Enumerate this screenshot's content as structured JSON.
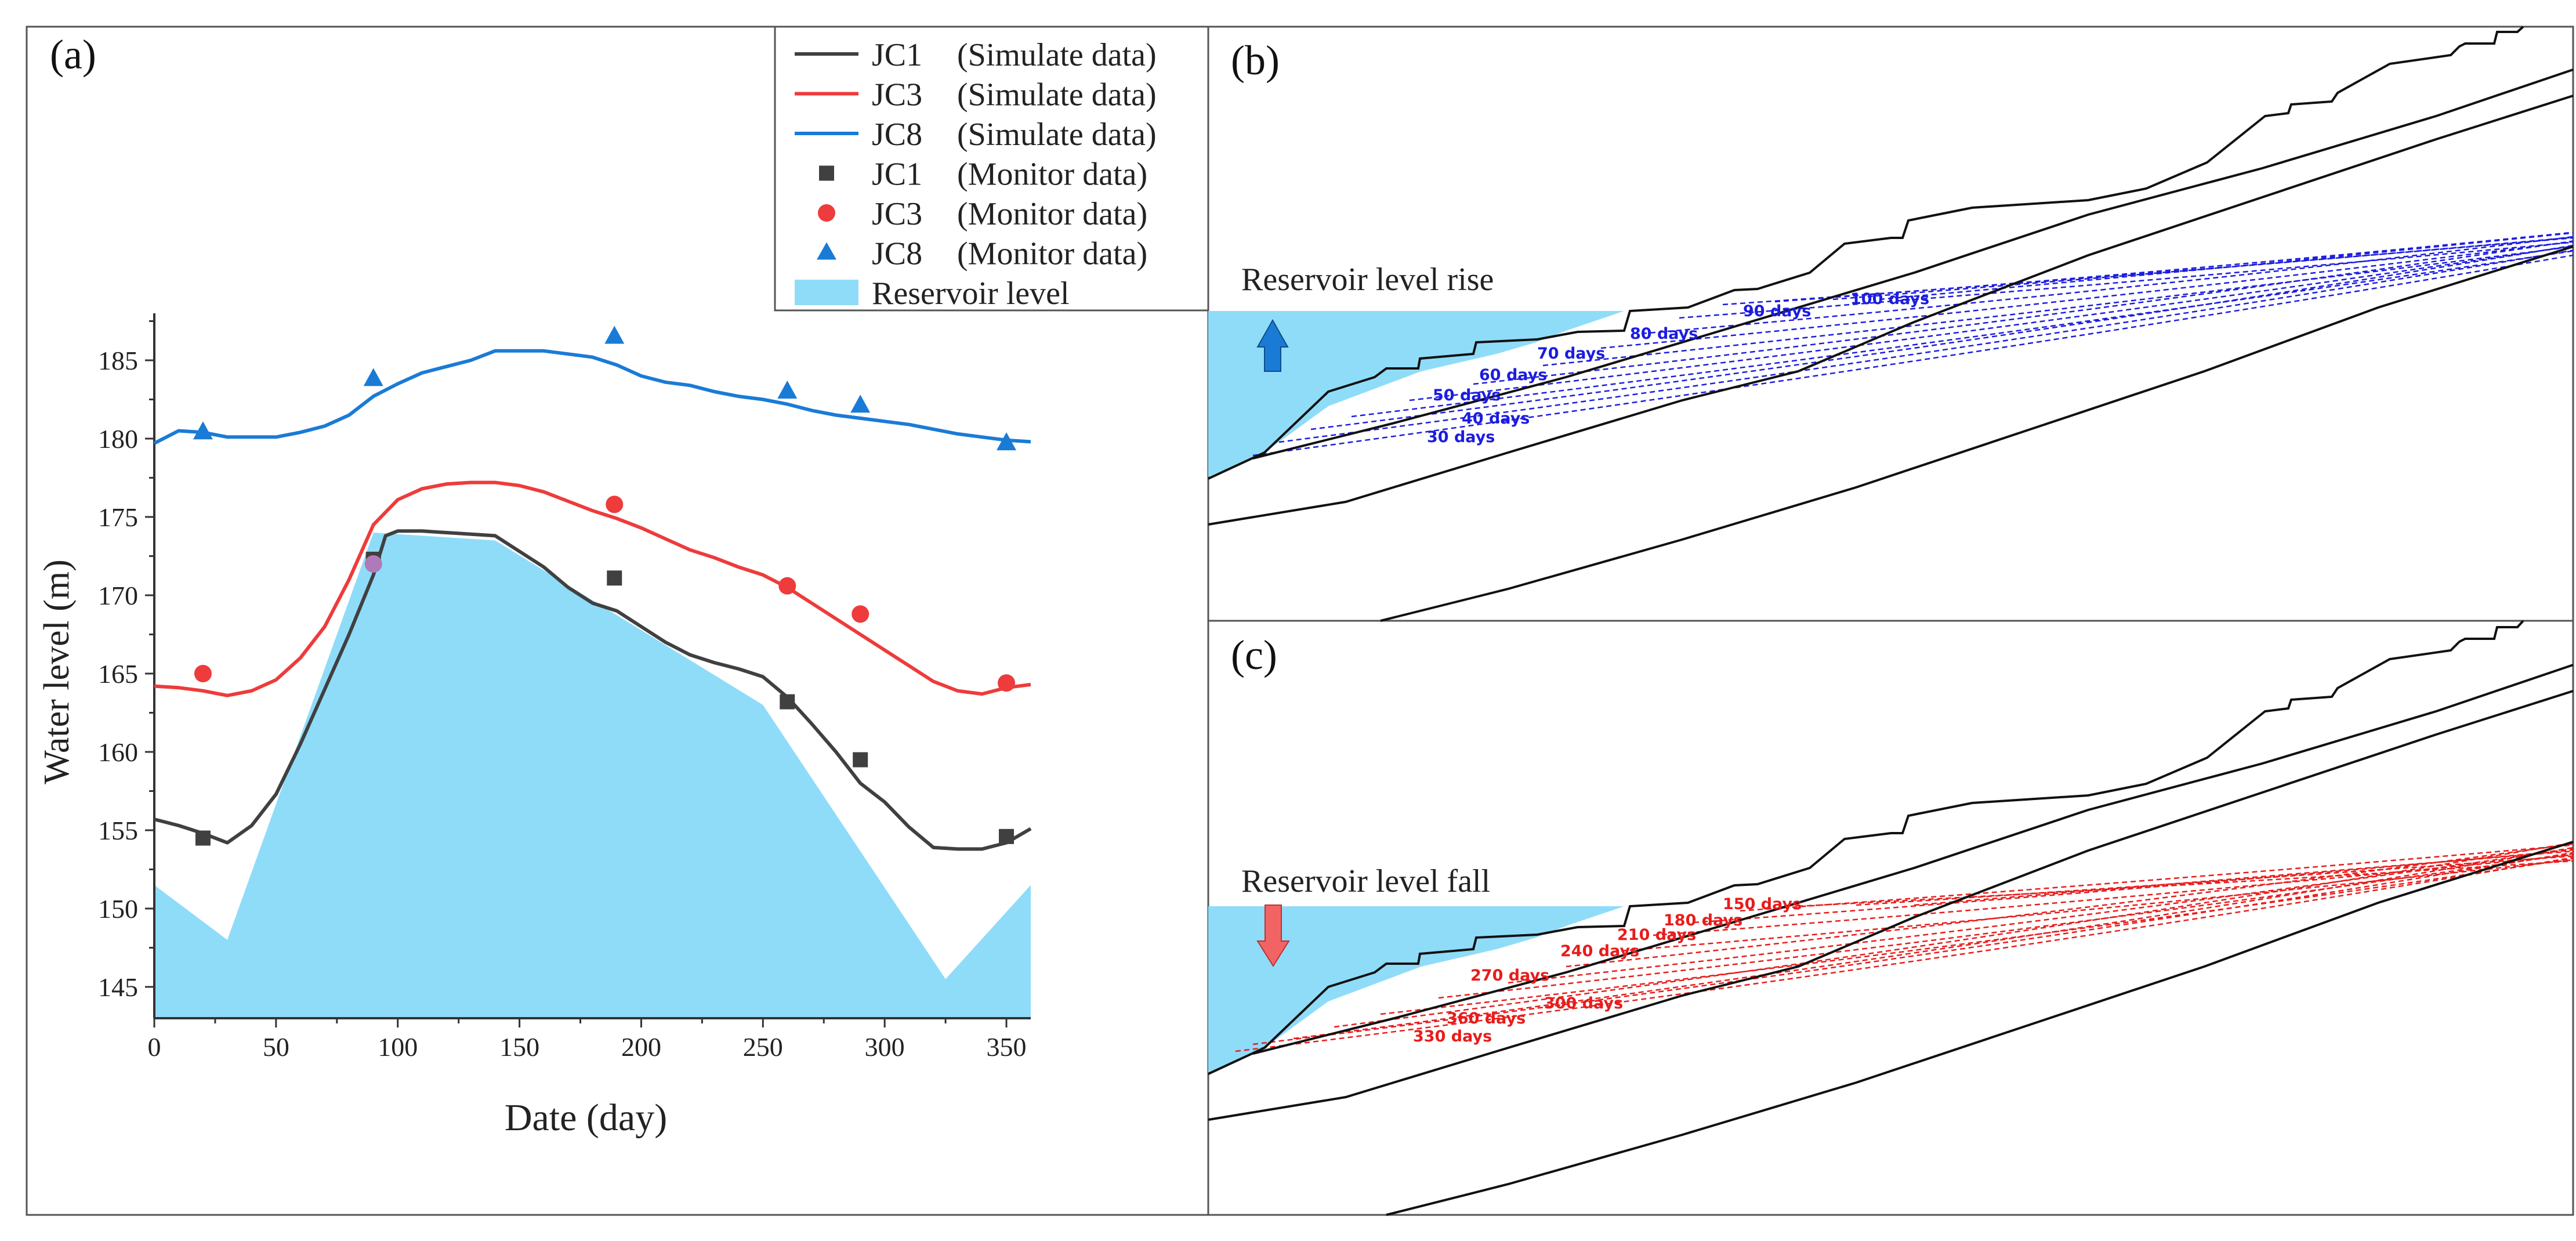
{
  "panels": {
    "a": {
      "label": "(a)"
    },
    "b": {
      "label": "(b)",
      "annotation": "Reservoir level rise"
    },
    "c": {
      "label": "(c)",
      "annotation": "Reservoir level fall"
    }
  },
  "colors": {
    "jc1": "#404040",
    "jc3": "#ee3b3b",
    "jc8": "#1a7bd6",
    "reservoir": "#8fdcf9",
    "rise": "#1c1ce0",
    "fall": "#e81c1c",
    "rise_arrow": "#1a7bd6",
    "fall_arrow": "#f26464"
  },
  "chart_data": [
    {
      "type": "line",
      "panel": "a",
      "xlabel": "Date (day)",
      "ylabel": "Water level (m)",
      "xlim": [
        0,
        360
      ],
      "ylim": [
        143,
        188
      ],
      "xticks": [
        0,
        50,
        100,
        150,
        200,
        250,
        300,
        350
      ],
      "yticks": [
        145,
        150,
        155,
        160,
        165,
        170,
        175,
        180,
        185
      ],
      "legend_position": "top-right",
      "legend": [
        {
          "key": "JC1",
          "desc": "(Simulate data)",
          "kind": "line",
          "color": "#404040"
        },
        {
          "key": "JC3",
          "desc": "(Simulate data)",
          "kind": "line",
          "color": "#ee3b3b"
        },
        {
          "key": "JC8",
          "desc": "(Simulate data)",
          "kind": "line",
          "color": "#1a7bd6"
        },
        {
          "key": "JC1",
          "desc": "(Monitor data)",
          "kind": "square",
          "color": "#404040"
        },
        {
          "key": "JC3",
          "desc": "(Monitor data)",
          "kind": "circle",
          "color": "#ee3b3b"
        },
        {
          "key": "JC8",
          "desc": "(Monitor data)",
          "kind": "triangle",
          "color": "#1a7bd6"
        },
        {
          "key": "Reservoir level",
          "desc": "",
          "kind": "area",
          "color": "#8fdcf9"
        }
      ],
      "reservoir": {
        "x": [
          0,
          30,
          90,
          140,
          250,
          325,
          360
        ],
        "y": [
          151.5,
          148.0,
          174.0,
          173.5,
          163.0,
          145.5,
          151.5
        ]
      },
      "series": [
        {
          "name": "JC1 Simulate",
          "x": [
            0,
            10,
            20,
            30,
            40,
            50,
            60,
            70,
            80,
            90,
            95,
            100,
            110,
            120,
            140,
            150,
            160,
            170,
            180,
            190,
            200,
            210,
            220,
            230,
            240,
            250,
            260,
            270,
            280,
            290,
            300,
            310,
            320,
            330,
            340,
            350,
            360
          ],
          "y": [
            155.7,
            155.3,
            154.8,
            154.2,
            155.3,
            157.3,
            160.5,
            164.0,
            167.5,
            171.3,
            173.8,
            174.1,
            174.1,
            174.0,
            173.8,
            172.8,
            171.8,
            170.5,
            169.5,
            169.0,
            168.0,
            167.0,
            166.2,
            165.7,
            165.3,
            164.8,
            163.5,
            161.8,
            160.0,
            158.0,
            156.8,
            155.2,
            153.9,
            153.8,
            153.8,
            154.2,
            155.1
          ]
        },
        {
          "name": "JC3 Simulate",
          "x": [
            0,
            10,
            20,
            30,
            40,
            50,
            60,
            70,
            80,
            90,
            100,
            110,
            120,
            130,
            140,
            150,
            160,
            170,
            180,
            190,
            200,
            210,
            220,
            230,
            240,
            250,
            260,
            270,
            280,
            290,
            300,
            310,
            320,
            330,
            340,
            350,
            360
          ],
          "y": [
            164.2,
            164.1,
            163.9,
            163.6,
            163.9,
            164.6,
            166.0,
            168.0,
            171.0,
            174.5,
            176.1,
            176.8,
            177.1,
            177.2,
            177.2,
            177.0,
            176.6,
            176.0,
            175.4,
            174.9,
            174.3,
            173.6,
            172.9,
            172.4,
            171.8,
            171.3,
            170.5,
            169.5,
            168.5,
            167.5,
            166.5,
            165.5,
            164.5,
            163.9,
            163.7,
            164.1,
            164.3
          ]
        },
        {
          "name": "JC8 Simulate",
          "x": [
            0,
            10,
            20,
            30,
            40,
            50,
            60,
            70,
            80,
            90,
            100,
            110,
            120,
            130,
            140,
            150,
            160,
            170,
            180,
            190,
            200,
            210,
            220,
            230,
            240,
            250,
            260,
            270,
            280,
            290,
            300,
            310,
            320,
            330,
            340,
            350,
            360
          ],
          "y": [
            179.7,
            180.5,
            180.4,
            180.1,
            180.1,
            180.1,
            180.4,
            180.8,
            181.5,
            182.7,
            183.5,
            184.2,
            184.6,
            185.0,
            185.6,
            185.6,
            185.6,
            185.4,
            185.2,
            184.7,
            184.0,
            183.6,
            183.4,
            183.0,
            182.7,
            182.5,
            182.2,
            181.8,
            181.5,
            181.3,
            181.1,
            180.9,
            180.6,
            180.3,
            180.1,
            179.9,
            179.8
          ]
        }
      ],
      "monitor": [
        {
          "name": "JC1 Monitor",
          "marker": "square",
          "x": [
            20,
            90,
            189,
            260,
            290,
            350
          ],
          "y": [
            154.5,
            172.3,
            171.1,
            163.2,
            159.5,
            154.6
          ]
        },
        {
          "name": "JC3 Monitor",
          "marker": "circle",
          "x": [
            20,
            90,
            189,
            260,
            290,
            350
          ],
          "y": [
            165.0,
            172.0,
            175.8,
            170.6,
            168.8,
            164.4
          ]
        },
        {
          "name": "JC8 Monitor",
          "marker": "triangle",
          "x": [
            20,
            90,
            189,
            260,
            290,
            350
          ],
          "y": [
            180.4,
            183.8,
            186.5,
            183.0,
            182.1,
            179.7
          ]
        }
      ]
    },
    {
      "type": "line",
      "panel": "b",
      "title": "Reservoir level rise",
      "series_labels": [
        "30 days",
        "40 days",
        "50 days",
        "60 days",
        "70 days",
        "80 days",
        "90 days",
        "100 days"
      ]
    },
    {
      "type": "line",
      "panel": "c",
      "title": "Reservoir level fall",
      "series_labels": [
        "150 days",
        "180 days",
        "210 days",
        "240 days",
        "270 days",
        "300 days",
        "330 days",
        "360 days"
      ]
    }
  ]
}
